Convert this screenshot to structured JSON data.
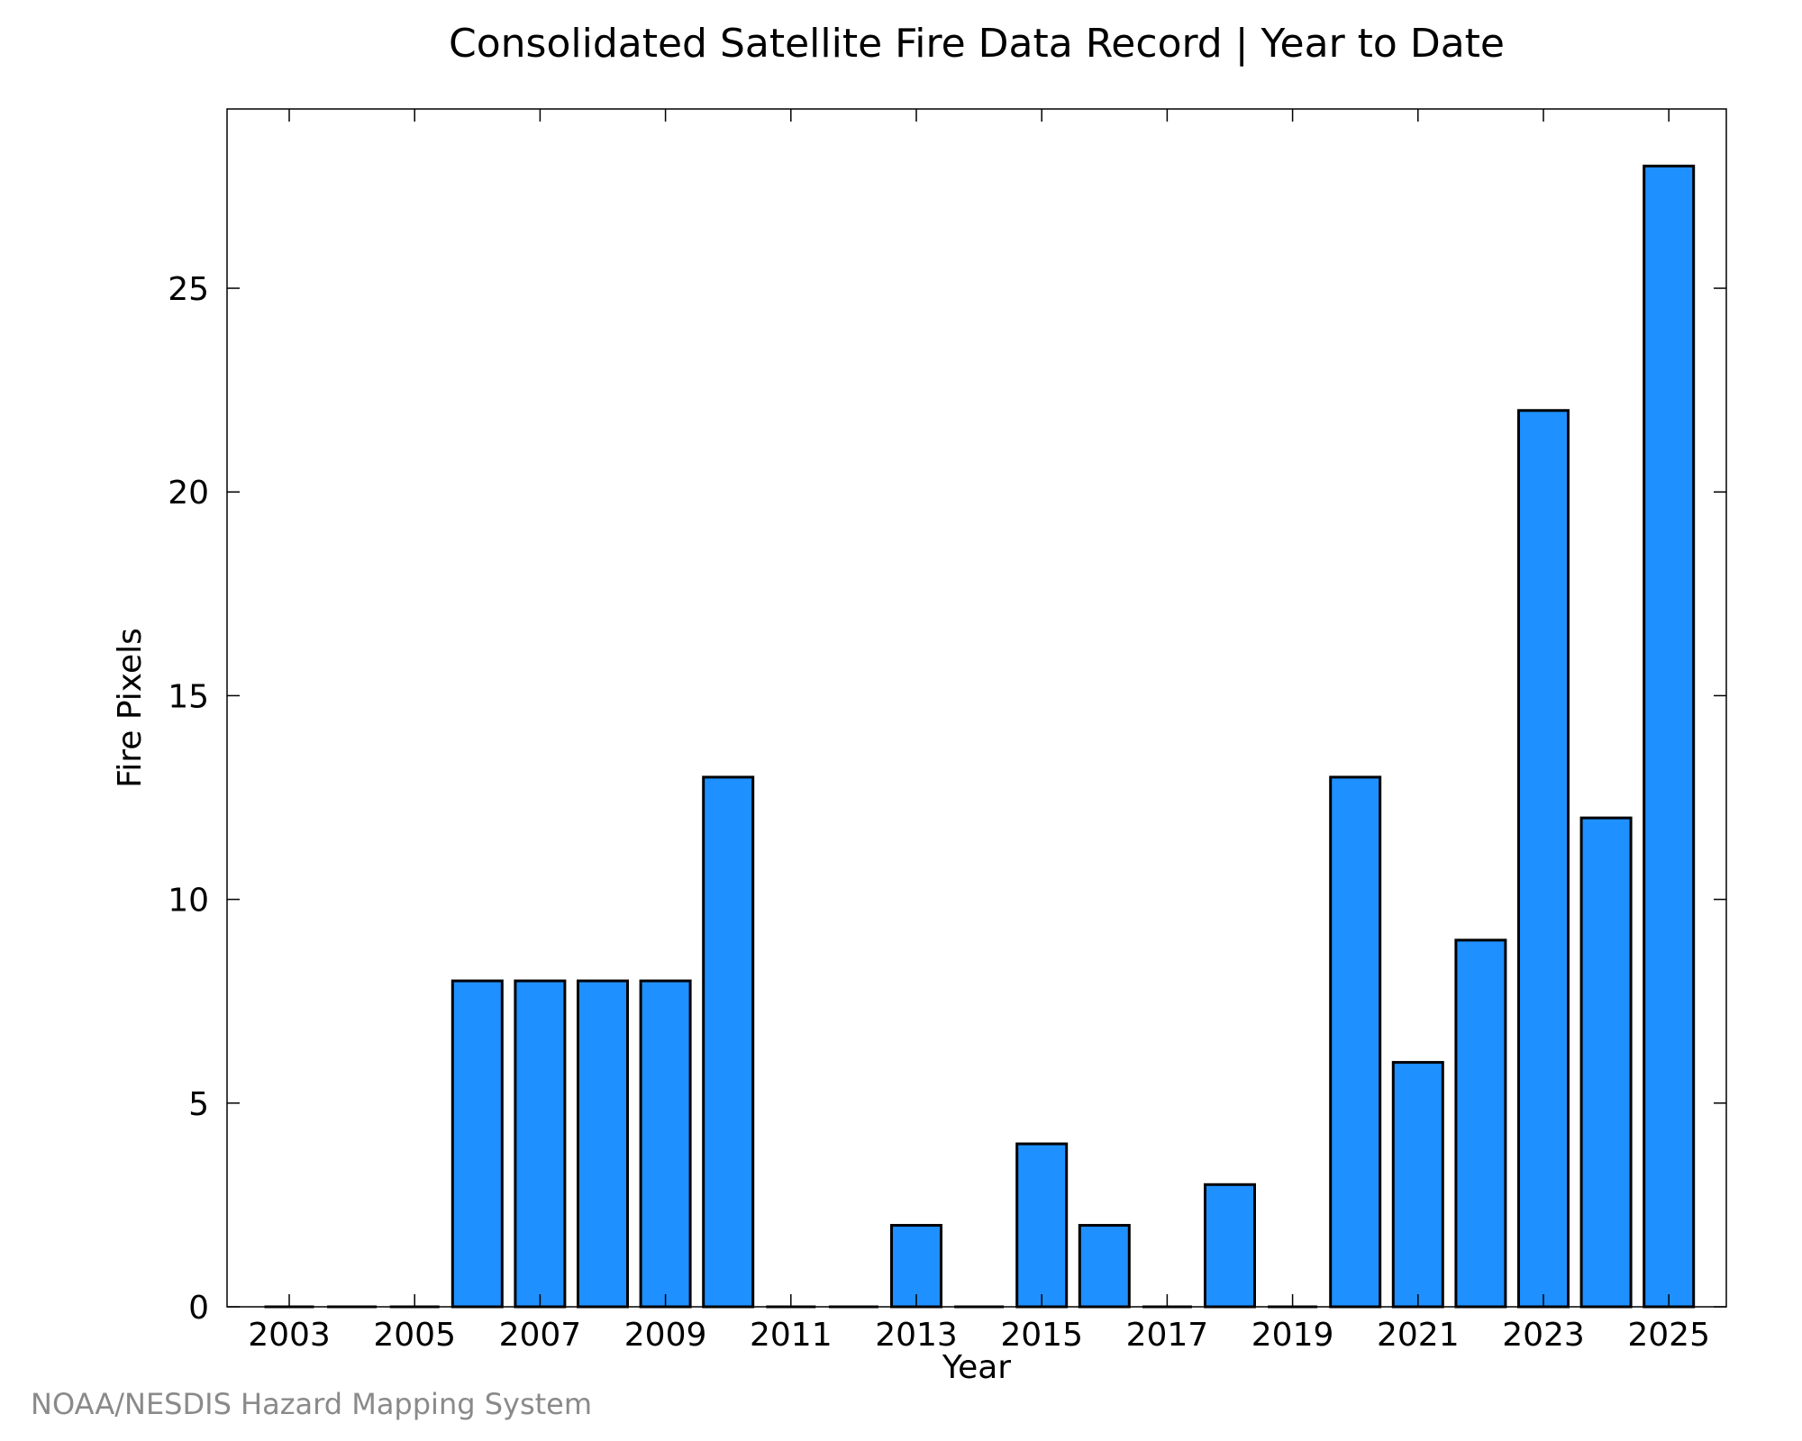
{
  "chart_data": {
    "type": "bar",
    "title": "Consolidated Satellite Fire Data Record | Year to Date",
    "xlabel": "Year",
    "ylabel": "Fire Pixels",
    "categories": [
      "2003",
      "2004",
      "2005",
      "2006",
      "2007",
      "2008",
      "2009",
      "2010",
      "2011",
      "2012",
      "2013",
      "2014",
      "2015",
      "2016",
      "2017",
      "2018",
      "2019",
      "2020",
      "2021",
      "2022",
      "2023",
      "2024",
      "2025"
    ],
    "values": [
      0,
      0,
      0,
      8,
      8,
      8,
      8,
      13,
      0,
      0,
      2,
      0,
      4,
      2,
      0,
      3,
      0,
      13,
      6,
      9,
      22,
      12,
      28
    ],
    "x_tick_labels": [
      "2003",
      "2005",
      "2007",
      "2009",
      "2011",
      "2013",
      "2015",
      "2017",
      "2019",
      "2021",
      "2023",
      "2025"
    ],
    "y_tick_labels": [
      "0",
      "5",
      "10",
      "15",
      "20",
      "25"
    ],
    "y_ticks": [
      0,
      5,
      10,
      15,
      20,
      25
    ],
    "ylim": [
      0,
      29.4
    ],
    "grid": false,
    "bar_color": "#1e90ff",
    "bar_edge_color": "#000000"
  },
  "credit": "NOAA/NESDIS Hazard Mapping System"
}
